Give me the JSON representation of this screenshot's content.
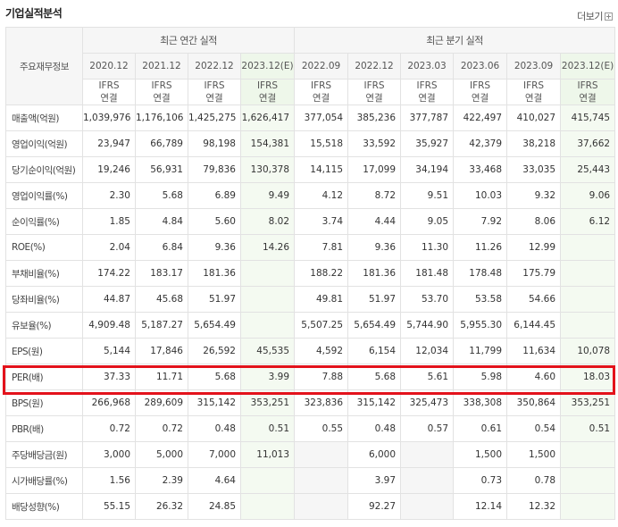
{
  "header": {
    "title": "기업실적분석",
    "more_label": "더보기"
  },
  "table": {
    "corner_label": "주요재무정보",
    "groups": {
      "annual": "최근 연간 실적",
      "quarterly": "최근 분기 실적"
    },
    "annual_periods": [
      "2020.12",
      "2021.12",
      "2022.12",
      "2023.12(E)"
    ],
    "quarter_periods": [
      "2022.09",
      "2022.12",
      "2023.03",
      "2023.06",
      "2023.09",
      "2023.12(E)"
    ],
    "ifrs_top": "IFRS",
    "ifrs_bottom": "연결",
    "rows": [
      {
        "label": "매출액(억원)",
        "annual": [
          "1,039,976",
          "1,176,106",
          "1,425,275",
          "1,626,417"
        ],
        "quarterly": [
          "377,054",
          "385,236",
          "377,787",
          "422,497",
          "410,027",
          "415,745"
        ]
      },
      {
        "label": "영업이익(억원)",
        "annual": [
          "23,947",
          "66,789",
          "98,198",
          "154,381"
        ],
        "quarterly": [
          "15,518",
          "33,592",
          "35,927",
          "42,379",
          "38,218",
          "37,662"
        ]
      },
      {
        "label": "당기순이익(억원)",
        "annual": [
          "19,246",
          "56,931",
          "79,836",
          "130,378"
        ],
        "quarterly": [
          "14,115",
          "17,099",
          "34,194",
          "33,468",
          "33,035",
          "25,443"
        ]
      },
      {
        "label": "영업이익률(%)",
        "annual": [
          "2.30",
          "5.68",
          "6.89",
          "9.49"
        ],
        "quarterly": [
          "4.12",
          "8.72",
          "9.51",
          "10.03",
          "9.32",
          "9.06"
        ]
      },
      {
        "label": "순이익률(%)",
        "annual": [
          "1.85",
          "4.84",
          "5.60",
          "8.02"
        ],
        "quarterly": [
          "3.74",
          "4.44",
          "9.05",
          "7.92",
          "8.06",
          "6.12"
        ]
      },
      {
        "label": "ROE(%)",
        "annual": [
          "2.04",
          "6.84",
          "9.36",
          "14.26"
        ],
        "quarterly": [
          "7.81",
          "9.36",
          "11.30",
          "11.26",
          "12.99",
          ""
        ]
      },
      {
        "label": "부채비율(%)",
        "annual": [
          "174.22",
          "183.17",
          "181.36",
          ""
        ],
        "quarterly": [
          "188.22",
          "181.36",
          "181.48",
          "178.48",
          "175.79",
          ""
        ]
      },
      {
        "label": "당좌비율(%)",
        "annual": [
          "44.87",
          "45.68",
          "51.97",
          ""
        ],
        "quarterly": [
          "49.81",
          "51.97",
          "53.70",
          "53.58",
          "54.66",
          ""
        ]
      },
      {
        "label": "유보율(%)",
        "annual": [
          "4,909.48",
          "5,187.27",
          "5,654.49",
          ""
        ],
        "quarterly": [
          "5,507.25",
          "5,654.49",
          "5,744.90",
          "5,955.30",
          "6,144.45",
          ""
        ]
      },
      {
        "label": "EPS(원)",
        "annual": [
          "5,144",
          "17,846",
          "26,592",
          "45,535"
        ],
        "quarterly": [
          "4,592",
          "6,154",
          "12,034",
          "11,799",
          "11,634",
          "10,078"
        ]
      },
      {
        "label": "PER(배)",
        "annual": [
          "37.33",
          "11.71",
          "5.68",
          "3.99"
        ],
        "quarterly": [
          "7.88",
          "5.68",
          "5.61",
          "5.98",
          "4.60",
          "18.03"
        ]
      },
      {
        "label": "BPS(원)",
        "annual": [
          "266,968",
          "289,609",
          "315,142",
          "353,251"
        ],
        "quarterly": [
          "323,836",
          "315,142",
          "325,473",
          "338,308",
          "350,864",
          "353,251"
        ]
      },
      {
        "label": "PBR(배)",
        "annual": [
          "0.72",
          "0.72",
          "0.48",
          "0.51"
        ],
        "quarterly": [
          "0.55",
          "0.48",
          "0.57",
          "0.61",
          "0.54",
          "0.51"
        ]
      },
      {
        "label": "주당배당금(원)",
        "annual": [
          "3,000",
          "5,000",
          "7,000",
          "11,013"
        ],
        "quarterly": [
          "",
          "6,000",
          "",
          "1,500",
          "1,500",
          ""
        ]
      },
      {
        "label": "시가배당률(%)",
        "annual": [
          "1.56",
          "2.39",
          "4.64",
          ""
        ],
        "quarterly": [
          "",
          "3.97",
          "",
          "0.73",
          "0.78",
          ""
        ]
      },
      {
        "label": "배당성향(%)",
        "annual": [
          "55.15",
          "26.32",
          "24.85",
          ""
        ],
        "quarterly": [
          "",
          "92.27",
          "",
          "12.14",
          "12.32",
          ""
        ]
      }
    ],
    "highlighted_row": "PER(배)",
    "highlight_color": "#e3121b",
    "ifrs_color": "#e07a2a",
    "estimate_bg": "#eef7ea"
  }
}
